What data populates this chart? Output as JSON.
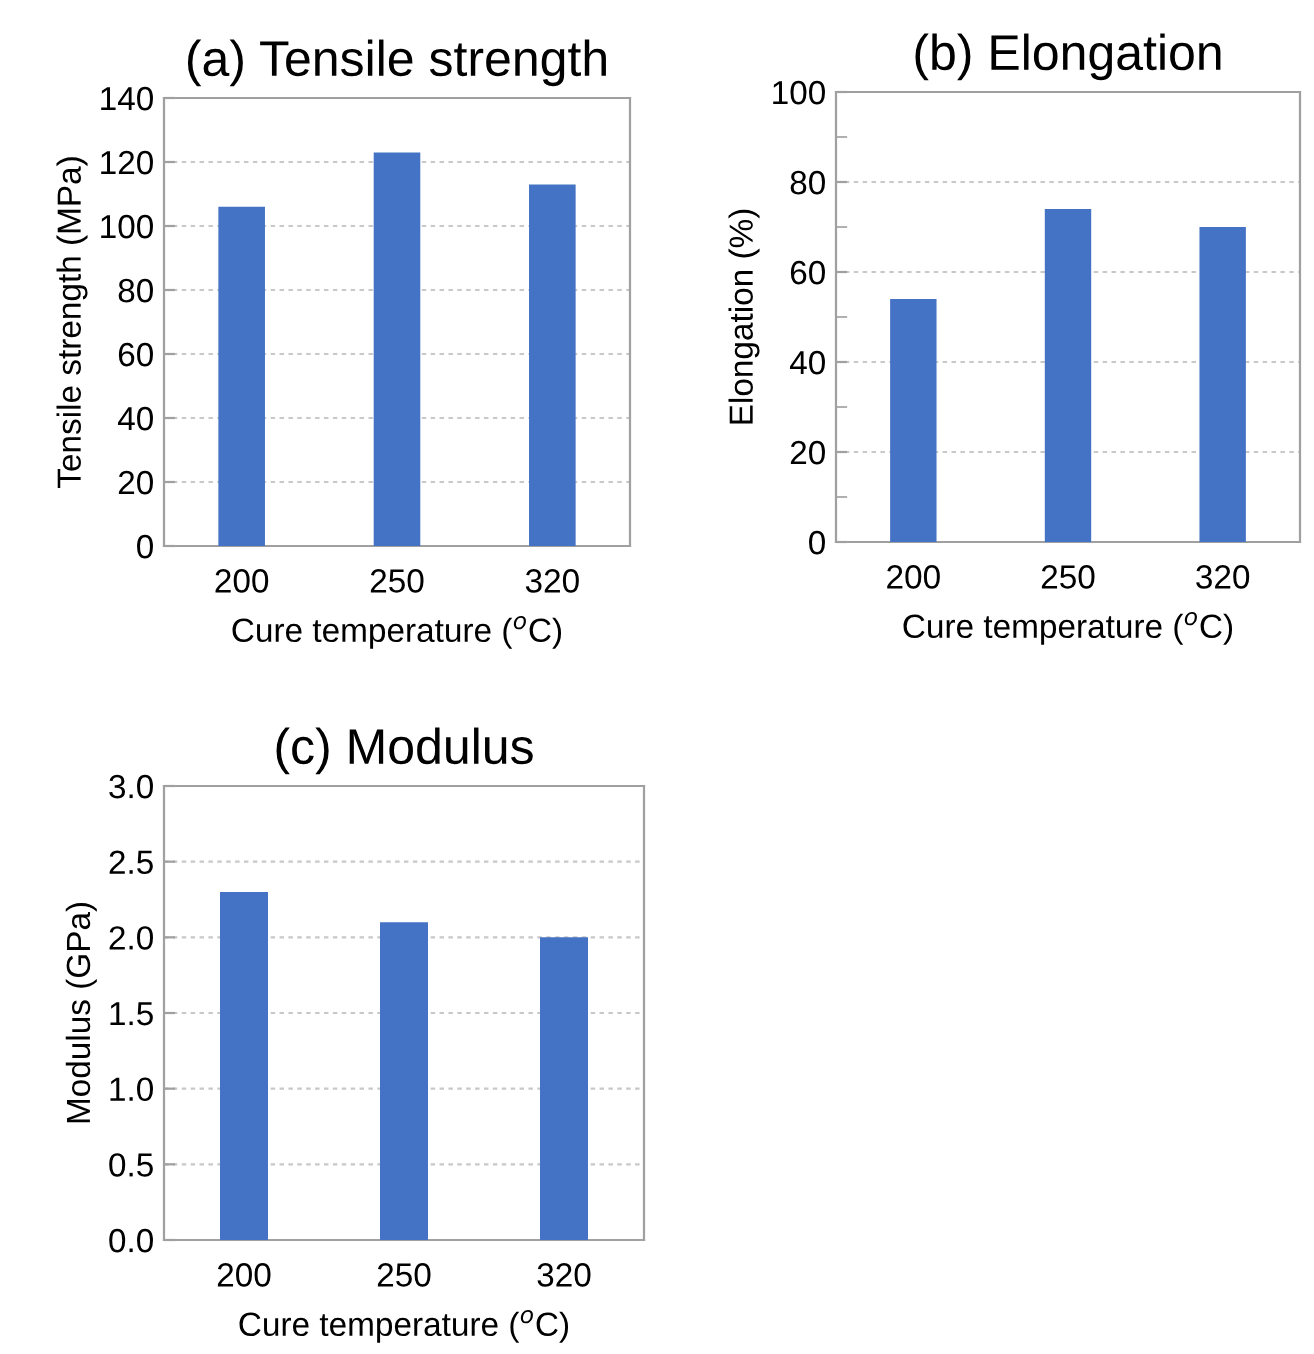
{
  "chart_data": [
    {
      "type": "bar",
      "title": "(a) Tensile strength",
      "xlabel": "Cure temperature ($^{o}$C)",
      "ylabel": "Tensile strength (MPa)",
      "categories": [
        "200",
        "250",
        "320"
      ],
      "values": [
        106,
        123,
        113
      ],
      "color": "#4472c4",
      "ylim": [
        0,
        140
      ],
      "yticks": [
        0,
        20,
        40,
        60,
        80,
        100,
        120,
        140
      ],
      "grid": "y"
    },
    {
      "type": "bar",
      "title": "(b) Elongation",
      "xlabel": "Cure temperature ($^{o}$C)",
      "ylabel": "Elongation (%)",
      "categories": [
        "200",
        "250",
        "320"
      ],
      "values": [
        54,
        74,
        70
      ],
      "color": "#4472c4",
      "ylim": [
        0,
        100
      ],
      "yticks": [
        0,
        {
          "value": 10,
          "label": null
        },
        20,
        {
          "value": 30,
          "label": null
        },
        40,
        {
          "value": 50,
          "label": null
        },
        60,
        {
          "value": 70,
          "label": null
        },
        80,
        {
          "value": 90,
          "label": null
        },
        100
      ],
      "grid": "y"
    },
    {
      "type": "bar",
      "title": "(c) Modulus",
      "xlabel": "Cure temperature ($^{o}$C)",
      "ylabel": "Modulus (GPa)",
      "categories": [
        "200",
        "250",
        "320"
      ],
      "values": [
        2.3,
        2.1,
        2.0
      ],
      "color": "#4472c4",
      "ylim": [
        0,
        3.0
      ],
      "yticks": [
        {
          "value": 0,
          "label": "0.0"
        },
        0.5,
        {
          "value": 1,
          "label": "1.0"
        },
        1.5,
        {
          "value": 2,
          "label": "2.0"
        },
        2.5,
        {
          "value": 3,
          "label": "3.0"
        }
      ],
      "grid": "y"
    }
  ]
}
